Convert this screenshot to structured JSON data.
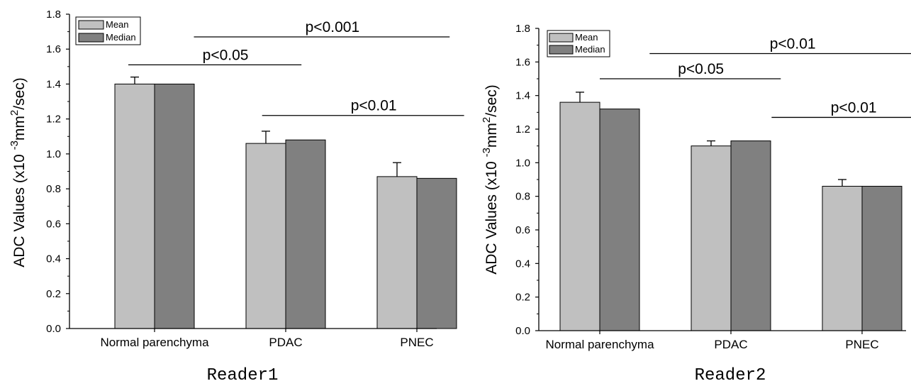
{
  "colors": {
    "mean": "#c0c0c0",
    "median": "#808080",
    "stroke": "#000000"
  },
  "chart_data": [
    {
      "type": "bar",
      "title": "Reader1",
      "ylabel_main": "ADC Values (x10 ",
      "ylabel_sup1": "-3",
      "ylabel_mid": "mm",
      "ylabel_sup2": "2",
      "ylabel_end": "/sec)",
      "categories": [
        "Normal parenchyma",
        "PDAC",
        "PNEC"
      ],
      "series": [
        {
          "name": "Mean",
          "values": [
            1.4,
            1.06,
            0.87
          ],
          "errors": [
            0.04,
            0.07,
            0.08
          ]
        },
        {
          "name": "Median",
          "values": [
            1.4,
            1.08,
            0.86
          ]
        }
      ],
      "ylim": [
        0,
        1.8
      ],
      "yticks": [
        "0.0",
        "0.2",
        "0.4",
        "0.6",
        "0.8",
        "1.0",
        "1.2",
        "1.4",
        "1.6",
        "1.8"
      ],
      "legend_position": "top-left",
      "significance": [
        {
          "label": "p<0.001",
          "y": 1.67,
          "from": 0.3,
          "to": 2.25
        },
        {
          "label": "p<0.05",
          "y": 1.51,
          "from": -0.2,
          "to": 1.12
        },
        {
          "label": "p<0.01",
          "y": 1.22,
          "from": 0.82,
          "to": 2.36
        }
      ]
    },
    {
      "type": "bar",
      "title": "Reader2",
      "ylabel_main": "ADC Values (x10 ",
      "ylabel_sup1": "-3",
      "ylabel_mid": "mm",
      "ylabel_sup2": "2",
      "ylabel_end": "/sec)",
      "categories": [
        "Normal parenchyma",
        "PDAC",
        "PNEC"
      ],
      "series": [
        {
          "name": "Mean",
          "values": [
            1.36,
            1.1,
            0.86
          ],
          "errors": [
            0.06,
            0.03,
            0.04
          ]
        },
        {
          "name": "Median",
          "values": [
            1.32,
            1.13,
            0.86
          ]
        }
      ],
      "ylim": [
        0,
        1.8
      ],
      "yticks": [
        "0.0",
        "0.2",
        "0.4",
        "0.6",
        "0.8",
        "1.0",
        "1.2",
        "1.4",
        "1.6",
        "1.8"
      ],
      "legend_position": "top-left",
      "significance": [
        {
          "label": "p<0.01",
          "y": 1.65,
          "from": 0.38,
          "to": 2.4
        },
        {
          "label": "p<0.05",
          "y": 1.5,
          "from": 0.0,
          "to": 1.38
        },
        {
          "label": "p<0.01",
          "y": 1.27,
          "from": 1.31,
          "to": 2.4
        }
      ]
    }
  ]
}
